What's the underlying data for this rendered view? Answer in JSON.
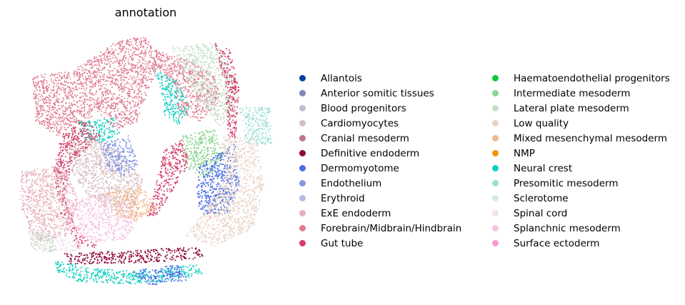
{
  "chart_data": {
    "type": "scatter",
    "title": "annotation",
    "legend_position": "right",
    "categories": [
      {
        "name": "Allantois",
        "color": "#023fa5"
      },
      {
        "name": "Anterior somitic tissues",
        "color": "#7d87b9"
      },
      {
        "name": "Blood progenitors",
        "color": "#bec1d4"
      },
      {
        "name": "Cardiomyocytes",
        "color": "#d6bcc0"
      },
      {
        "name": "Cranial mesoderm",
        "color": "#bb7784"
      },
      {
        "name": "Definitive endoderm",
        "color": "#8e063b"
      },
      {
        "name": "Dermomyotome",
        "color": "#4a6fe3"
      },
      {
        "name": "Endothelium",
        "color": "#8595e1"
      },
      {
        "name": "Erythroid",
        "color": "#b5bbe3"
      },
      {
        "name": "ExE endoderm",
        "color": "#e6afb9"
      },
      {
        "name": "Forebrain/Midbrain/Hindbrain",
        "color": "#e07b91"
      },
      {
        "name": "Gut tube",
        "color": "#d33f6a"
      },
      {
        "name": "Haematoendothelial progenitors",
        "color": "#11c638"
      },
      {
        "name": "Intermediate mesoderm",
        "color": "#8dd593"
      },
      {
        "name": "Lateral plate mesoderm",
        "color": "#c6dec7"
      },
      {
        "name": "Low quality",
        "color": "#ead3c6"
      },
      {
        "name": "Mixed mesenchymal mesoderm",
        "color": "#f0b98d"
      },
      {
        "name": "NMP",
        "color": "#ef9708"
      },
      {
        "name": "Neural crest",
        "color": "#0fcfc0"
      },
      {
        "name": "Presomitic mesoderm",
        "color": "#9cded6"
      },
      {
        "name": "Sclerotome",
        "color": "#d5eae7"
      },
      {
        "name": "Spinal cord",
        "color": "#f3e1eb"
      },
      {
        "name": "Splanchnic mesoderm",
        "color": "#f6c4e1"
      },
      {
        "name": "Surface ectoderm",
        "color": "#f79cd4"
      }
    ],
    "regions": [
      {
        "category": "Forebrain/Midbrain/Hindbrain",
        "points": [
          [
            45,
            105
          ],
          [
            100,
            100
          ],
          [
            160,
            60
          ],
          [
            200,
            50
          ],
          [
            230,
            80
          ],
          [
            210,
            120
          ],
          [
            190,
            175
          ],
          [
            160,
            180
          ],
          [
            140,
            160
          ],
          [
            110,
            170
          ],
          [
            80,
            190
          ],
          [
            50,
            170
          ]
        ]
      },
      {
        "category": "Forebrain/Midbrain/Hindbrain",
        "points": [
          [
            215,
            70
          ],
          [
            265,
            85
          ],
          [
            300,
            105
          ],
          [
            310,
            140
          ],
          [
            280,
            170
          ],
          [
            250,
            165
          ],
          [
            245,
            120
          ],
          [
            225,
            100
          ]
        ]
      },
      {
        "category": "Neural crest",
        "points": [
          [
            215,
            95
          ],
          [
            250,
            115
          ],
          [
            265,
            150
          ],
          [
            250,
            175
          ],
          [
            230,
            160
          ],
          [
            225,
            125
          ]
        ]
      },
      {
        "category": "Neural crest",
        "points": [
          [
            110,
            170
          ],
          [
            160,
            165
          ],
          [
            170,
            185
          ],
          [
            140,
            200
          ],
          [
            115,
            195
          ]
        ]
      },
      {
        "category": "Lateral plate mesoderm",
        "points": [
          [
            240,
            65
          ],
          [
            300,
            60
          ],
          [
            325,
            90
          ],
          [
            330,
            150
          ],
          [
            310,
            180
          ],
          [
            285,
            150
          ],
          [
            260,
            110
          ]
        ]
      },
      {
        "category": "Intermediate mesoderm",
        "points": [
          [
            255,
            190
          ],
          [
            300,
            180
          ],
          [
            315,
            220
          ],
          [
            290,
            250
          ],
          [
            260,
            235
          ]
        ]
      },
      {
        "category": "Gut tube",
        "points": [
          [
            300,
            60
          ],
          [
            322,
            70
          ],
          [
            335,
            120
          ],
          [
            330,
            200
          ],
          [
            320,
            195
          ],
          [
            315,
            120
          ]
        ]
      },
      {
        "category": "Gut tube",
        "points": [
          [
            85,
            190
          ],
          [
            120,
            165
          ],
          [
            140,
            190
          ],
          [
            100,
            230
          ],
          [
            90,
            280
          ],
          [
            115,
            330
          ],
          [
            140,
            345
          ],
          [
            110,
            350
          ],
          [
            85,
            300
          ],
          [
            75,
            240
          ]
        ]
      },
      {
        "category": "Gut tube",
        "points": [
          [
            230,
            210
          ],
          [
            255,
            195
          ],
          [
            265,
            230
          ],
          [
            240,
            270
          ],
          [
            220,
            300
          ],
          [
            205,
            305
          ],
          [
            215,
            270
          ]
        ]
      },
      {
        "category": "Dermomyotome",
        "points": [
          [
            280,
            230
          ],
          [
            330,
            200
          ],
          [
            335,
            260
          ],
          [
            320,
            300
          ],
          [
            280,
            300
          ],
          [
            275,
            260
          ]
        ]
      },
      {
        "category": "Low quality",
        "points": [
          [
            310,
            190
          ],
          [
            360,
            195
          ],
          [
            370,
            260
          ],
          [
            355,
            320
          ],
          [
            300,
            345
          ],
          [
            260,
            330
          ],
          [
            290,
            290
          ],
          [
            315,
            250
          ]
        ]
      },
      {
        "category": "Presomitic mesoderm",
        "points": [
          [
            335,
            150
          ],
          [
            378,
            150
          ],
          [
            380,
            205
          ],
          [
            345,
            200
          ]
        ]
      },
      {
        "category": "Splanchnic mesoderm",
        "points": [
          [
            90,
            280
          ],
          [
            150,
            270
          ],
          [
            200,
            300
          ],
          [
            175,
            335
          ],
          [
            130,
            340
          ],
          [
            95,
            320
          ]
        ]
      },
      {
        "category": "ExE endoderm",
        "points": [
          [
            30,
            240
          ],
          [
            90,
            230
          ],
          [
            110,
            280
          ],
          [
            95,
            330
          ],
          [
            50,
            340
          ],
          [
            28,
            290
          ]
        ]
      },
      {
        "category": "Cardiomyocytes",
        "points": [
          [
            95,
            200
          ],
          [
            140,
            195
          ],
          [
            170,
            215
          ],
          [
            200,
            250
          ],
          [
            190,
            290
          ],
          [
            160,
            300
          ],
          [
            120,
            270
          ],
          [
            100,
            240
          ]
        ]
      },
      {
        "category": "Mixed mesenchymal mesoderm",
        "points": [
          [
            150,
            270
          ],
          [
            200,
            260
          ],
          [
            220,
            290
          ],
          [
            190,
            310
          ],
          [
            160,
            300
          ]
        ]
      },
      {
        "category": "Endothelium",
        "points": [
          [
            140,
            200
          ],
          [
            180,
            190
          ],
          [
            195,
            230
          ],
          [
            170,
            250
          ],
          [
            150,
            235
          ]
        ]
      },
      {
        "category": "Definitive endoderm",
        "points": [
          [
            90,
            355
          ],
          [
            200,
            350
          ],
          [
            280,
            345
          ],
          [
            285,
            362
          ],
          [
            200,
            368
          ],
          [
            100,
            370
          ]
        ]
      },
      {
        "category": "Neural crest",
        "points": [
          [
            78,
            365
          ],
          [
            120,
            375
          ],
          [
            200,
            380
          ],
          [
            275,
            370
          ],
          [
            285,
            385
          ],
          [
            200,
            398
          ],
          [
            110,
            395
          ],
          [
            78,
            380
          ]
        ]
      },
      {
        "category": "Dermomyotome",
        "points": [
          [
            180,
            380
          ],
          [
            250,
            370
          ],
          [
            265,
            392
          ],
          [
            210,
            400
          ]
        ]
      },
      {
        "category": "Spinal cord",
        "points": [
          [
            45,
            320
          ],
          [
            90,
            330
          ],
          [
            120,
            345
          ],
          [
            100,
            355
          ],
          [
            60,
            352
          ],
          [
            45,
            340
          ]
        ]
      },
      {
        "category": "Lateral plate mesoderm",
        "points": [
          [
            40,
            320
          ],
          [
            75,
            330
          ],
          [
            78,
            355
          ],
          [
            45,
            350
          ]
        ]
      }
    ]
  }
}
